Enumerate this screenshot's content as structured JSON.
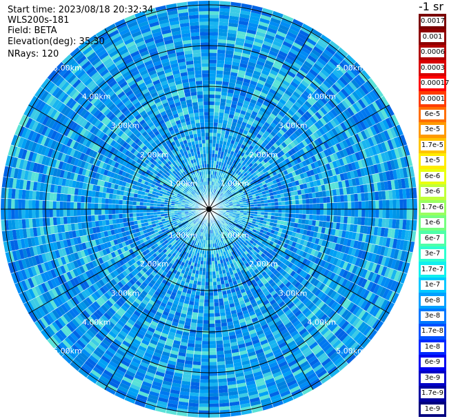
{
  "info": {
    "start_time": "Start time: 2023/08/18 20:32:34",
    "instrument": "WLS200s-181",
    "field": "Field: BETA",
    "elevation": "Elevation(deg): 35.30",
    "nrays": "NRays: 120"
  },
  "colorbar": {
    "title": "-1 sr",
    "labels": [
      "0.0017",
      "0.001",
      "0.0006",
      "0.0003",
      "0.00017",
      "0.0001",
      "6e-5",
      "3e-5",
      "1.7e-5",
      "1e-5",
      "6e-6",
      "3e-6",
      "1.7e-6",
      "1e-6",
      "6e-7",
      "3e-7",
      "1.7e-7",
      "1e-7",
      "6e-8",
      "3e-8",
      "1.7e-8",
      "1e-8",
      "6e-9",
      "3e-9",
      "1.7e-9",
      "1e-9"
    ],
    "colors": [
      "#7a0000",
      "#8e0000",
      "#b00000",
      "#d80000",
      "#ff0000",
      "#ff3c00",
      "#ff6e00",
      "#ff9a00",
      "#ffc400",
      "#ffec00",
      "#e8ff10",
      "#c0ff3a",
      "#98ff60",
      "#76ff80",
      "#4effa8",
      "#2cffd0",
      "#10f0ee",
      "#00c8ff",
      "#00a0ff",
      "#0078ff",
      "#0050ff",
      "#0028ff",
      "#0000f0",
      "#0000c8",
      "#0000a0",
      "#000080"
    ]
  },
  "ppi": {
    "nrays": 120,
    "range_labels": [
      "1.00km",
      "2.00km",
      "3.00km",
      "4.00km",
      "5.00km"
    ],
    "ring_labels_partial": [
      "5.00km"
    ]
  }
}
